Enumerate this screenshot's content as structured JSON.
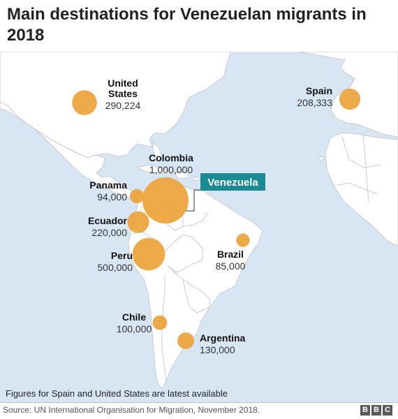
{
  "title": "Main destinations for Venezuelan migrants in 2018",
  "origin": {
    "name": "Venezuela",
    "color": "#1a8a94"
  },
  "colors": {
    "ocean": "#d8e6f3",
    "land": "#ffffff",
    "border": "#c8ccd2",
    "bubble": "#eda23a"
  },
  "destinations": [
    {
      "id": "united-states",
      "name": "United States",
      "value": 290224,
      "value_label": "290,224"
    },
    {
      "id": "spain",
      "name": "Spain",
      "value": 208333,
      "value_label": "208,333"
    },
    {
      "id": "colombia",
      "name": "Colombia",
      "value": 1000000,
      "value_label": "1,000,000"
    },
    {
      "id": "panama",
      "name": "Panama",
      "value": 94000,
      "value_label": "94,000"
    },
    {
      "id": "ecuador",
      "name": "Ecuador",
      "value": 220000,
      "value_label": "220,000"
    },
    {
      "id": "peru",
      "name": "Peru",
      "value": 500000,
      "value_label": "500,000"
    },
    {
      "id": "brazil",
      "name": "Brazil",
      "value": 85000,
      "value_label": "85,000"
    },
    {
      "id": "chile",
      "name": "Chile",
      "value": 100000,
      "value_label": "100,000"
    },
    {
      "id": "argentina",
      "name": "Argentina",
      "value": 130000,
      "value_label": "130,000"
    }
  ],
  "footnote": "Figures for Spain and United States are latest available",
  "source": "Source: UN International Organisation for Migration, November 2018.",
  "logo_letters": [
    "B",
    "B",
    "C"
  ]
}
